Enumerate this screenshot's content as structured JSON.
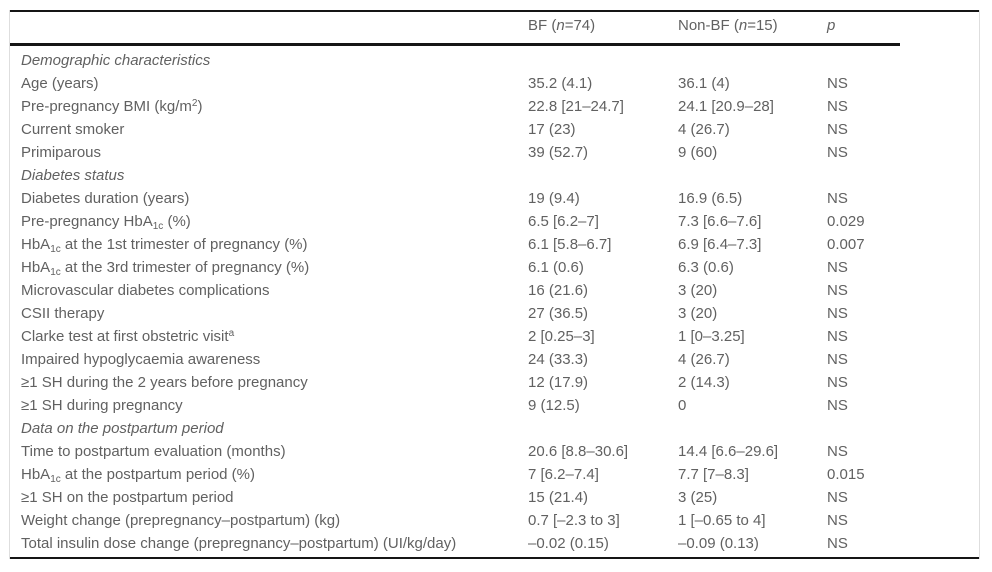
{
  "table": {
    "columns": [
      "",
      "BF (*n*=74)",
      "Non-BF (*n*=15)",
      "*p*"
    ],
    "rows": [
      {
        "type": "section",
        "label": "Demographic characteristics"
      },
      {
        "type": "data",
        "label": "Age (years)",
        "bf": "35.2 (4.1)",
        "nonbf": "36.1 (4)",
        "p": "NS"
      },
      {
        "type": "data",
        "label": "Pre-pregnancy BMI (kg/m^{2})",
        "bf": "22.8 [21–24.7]",
        "nonbf": "24.1 [20.9–28]",
        "p": "NS"
      },
      {
        "type": "data",
        "label": "Current smoker",
        "bf": "17 (23)",
        "nonbf": "4 (26.7)",
        "p": "NS"
      },
      {
        "type": "data",
        "label": "Primiparous",
        "bf": "39 (52.7)",
        "nonbf": "9 (60)",
        "p": "NS"
      },
      {
        "type": "section",
        "label": "Diabetes status"
      },
      {
        "type": "data",
        "label": "Diabetes duration (years)",
        "bf": "19 (9.4)",
        "nonbf": "16.9 (6.5)",
        "p": "NS"
      },
      {
        "type": "data",
        "label": "Pre-pregnancy HbA_{1c} (%)",
        "bf": "6.5 [6.2–7]",
        "nonbf": "7.3 [6.6–7.6]",
        "p": "0.029"
      },
      {
        "type": "data",
        "label": "HbA_{1c} at the 1st trimester of pregnancy (%)",
        "bf": "6.1 [5.8–6.7]",
        "nonbf": "6.9 [6.4–7.3]",
        "p": "0.007"
      },
      {
        "type": "data",
        "label": "HbA_{1c} at the 3rd trimester of pregnancy (%)",
        "bf": "6.1 (0.6)",
        "nonbf": "6.3 (0.6)",
        "p": "NS"
      },
      {
        "type": "data",
        "label": "Microvascular diabetes complications",
        "bf": "16 (21.6)",
        "nonbf": "3 (20)",
        "p": "NS"
      },
      {
        "type": "data",
        "label": "CSII therapy",
        "bf": "27 (36.5)",
        "nonbf": "3 (20)",
        "p": "NS"
      },
      {
        "type": "data",
        "label": "Clarke test at first obstetric visit^{a}",
        "bf": "2 [0.25–3]",
        "nonbf": "1 [0–3.25]",
        "p": "NS"
      },
      {
        "type": "data",
        "label": "Impaired hypoglycaemia awareness",
        "bf": "24 (33.3)",
        "nonbf": "4 (26.7)",
        "p": "NS"
      },
      {
        "type": "data",
        "label": "≥1 SH during the 2 years before pregnancy",
        "bf": "12 (17.9)",
        "nonbf": "2 (14.3)",
        "p": "NS"
      },
      {
        "type": "data",
        "label": "≥1 SH during pregnancy",
        "bf": "9 (12.5)",
        "nonbf": "0",
        "p": "NS"
      },
      {
        "type": "section",
        "label": "Data on the postpartum period"
      },
      {
        "type": "data",
        "label": "Time to postpartum evaluation (months)",
        "bf": "20.6 [8.8–30.6]",
        "nonbf": "14.4 [6.6–29.6]",
        "p": "NS"
      },
      {
        "type": "data",
        "label": "HbA_{1c} at the postpartum period (%)",
        "bf": "7 [6.2–7.4]",
        "nonbf": "7.7 [7–8.3]",
        "p": "0.015"
      },
      {
        "type": "data",
        "label": "≥1 SH on the postpartum period",
        "bf": "15 (21.4)",
        "nonbf": "3 (25)",
        "p": "NS"
      },
      {
        "type": "data",
        "label": "Weight change (prepregnancy–postpartum) (kg)",
        "bf": "0.7 [–2.3 to 3]",
        "nonbf": "1 [–0.65 to 4]",
        "p": "NS"
      },
      {
        "type": "data",
        "label": "Total insulin dose change (prepregnancy–postpartum) (UI/kg/day)",
        "bf": "–0.02 (0.15)",
        "nonbf": "–0.09 (0.13)",
        "p": "NS"
      }
    ]
  }
}
